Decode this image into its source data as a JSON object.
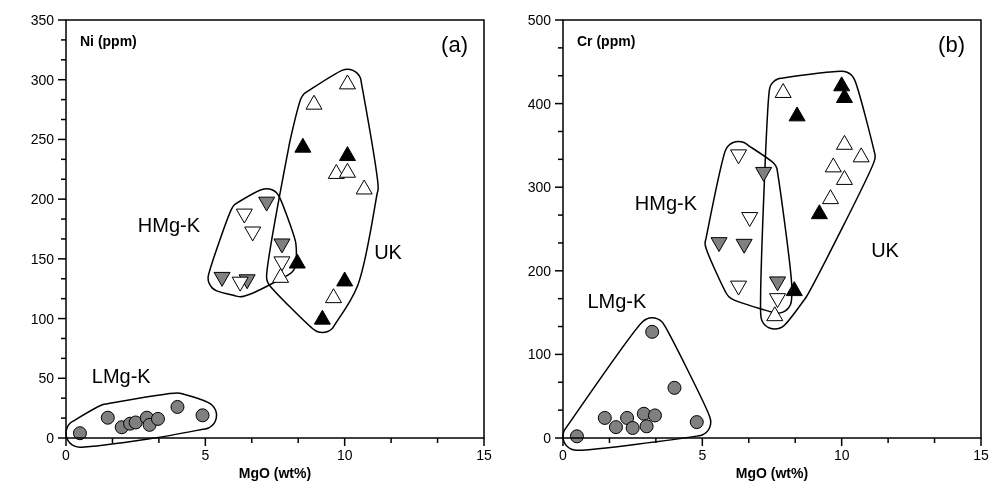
{
  "chart_data": [
    {
      "type": "scatter",
      "ylabel": "Ni (ppm)",
      "xlabel": "MgO  (wt%)",
      "xlim": [
        0,
        15
      ],
      "ylim": [
        0,
        350
      ],
      "xticks": [
        0,
        {
          "value": 1.667,
          "label": null
        },
        {
          "value": 3.333,
          "label": null
        },
        5,
        {
          "value": 6.667,
          "label": null
        },
        {
          "value": 8.333,
          "label": null
        },
        10,
        {
          "value": 11.667,
          "label": null
        },
        {
          "value": 13.333,
          "label": null
        },
        15
      ],
      "yticks": [
        0,
        {
          "value": 16.67,
          "label": null
        },
        {
          "value": 33.33,
          "label": null
        },
        50,
        {
          "value": 66.67,
          "label": null
        },
        {
          "value": 83.33,
          "label": null
        },
        100,
        {
          "value": 116.67,
          "label": null
        },
        {
          "value": 133.33,
          "label": null
        },
        150,
        {
          "value": 166.67,
          "label": null
        },
        {
          "value": 183.33,
          "label": null
        },
        200,
        {
          "value": 216.67,
          "label": null
        },
        {
          "value": 233.33,
          "label": null
        },
        250,
        {
          "value": 266.67,
          "label": null
        },
        {
          "value": 283.33,
          "label": null
        },
        300,
        {
          "value": 316.67,
          "label": null
        },
        {
          "value": 333.33,
          "label": null
        },
        350
      ],
      "annotations": [
        "(a)",
        "LMg-K",
        "HMg-K",
        "UK"
      ],
      "series": [
        {
          "marker": "circle",
          "color": "#808080",
          "x": [
            0.5,
            1.5,
            2.0,
            2.3,
            2.5,
            2.9,
            3.0,
            3.3,
            4.0,
            4.9
          ],
          "values": [
            4,
            17,
            9,
            12,
            13,
            17,
            11,
            16,
            26,
            19
          ]
        },
        {
          "marker": "triangle-down",
          "color": "#808080",
          "x": [
            7.2,
            7.75,
            6.5,
            5.6
          ],
          "values": [
            197,
            162,
            132,
            134
          ]
        },
        {
          "marker": "triangle-down",
          "color": "#ffffff",
          "x": [
            6.4,
            6.7,
            7.75,
            6.25
          ],
          "values": [
            187,
            172,
            147,
            130
          ]
        },
        {
          "marker": "triangle",
          "color": "#000000",
          "x": [
            8.5,
            10.1,
            8.3,
            10.0,
            9.2
          ],
          "values": [
            244,
            237,
            147,
            132,
            100
          ]
        },
        {
          "marker": "triangle",
          "color": "#ffffff",
          "x": [
            10.1,
            8.9,
            9.7,
            10.1,
            10.7,
            7.7,
            9.6
          ],
          "values": [
            297,
            280,
            222,
            223,
            209,
            135,
            118
          ]
        }
      ]
    },
    {
      "type": "scatter",
      "ylabel": "Cr (ppm)",
      "xlabel": "MgO  (wt%)",
      "xlim": [
        0,
        15
      ],
      "ylim": [
        0,
        500
      ],
      "xticks": [
        0,
        {
          "value": 1.667,
          "label": null
        },
        {
          "value": 3.333,
          "label": null
        },
        5,
        {
          "value": 6.667,
          "label": null
        },
        {
          "value": 8.333,
          "label": null
        },
        10,
        {
          "value": 11.667,
          "label": null
        },
        {
          "value": 13.333,
          "label": null
        },
        15
      ],
      "yticks": [
        0,
        {
          "value": 33.33,
          "label": null
        },
        {
          "value": 66.67,
          "label": null
        },
        100,
        {
          "value": 133.33,
          "label": null
        },
        {
          "value": 166.67,
          "label": null
        },
        200,
        {
          "value": 233.33,
          "label": null
        },
        {
          "value": 266.67,
          "label": null
        },
        300,
        {
          "value": 333.33,
          "label": null
        },
        {
          "value": 366.67,
          "label": null
        },
        400,
        {
          "value": 433.33,
          "label": null
        },
        {
          "value": 466.67,
          "label": null
        },
        500
      ],
      "annotations": [
        "(b)",
        "LMg-K",
        "HMg-K",
        "UK"
      ],
      "series": [
        {
          "marker": "circle",
          "color": "#808080",
          "x": [
            0.5,
            1.5,
            1.9,
            2.3,
            2.5,
            2.9,
            3.0,
            3.3,
            3.2,
            4.0,
            4.8
          ],
          "values": [
            2,
            24,
            13,
            24,
            12,
            29,
            14,
            27,
            127,
            60,
            19
          ]
        },
        {
          "marker": "triangle-down",
          "color": "#808080",
          "x": [
            7.2,
            5.6,
            6.5,
            7.7
          ],
          "values": [
            317,
            233,
            231,
            186
          ]
        },
        {
          "marker": "triangle-down",
          "color": "#ffffff",
          "x": [
            6.3,
            6.7,
            6.3,
            7.7
          ],
          "values": [
            338,
            263,
            181,
            166
          ]
        },
        {
          "marker": "triangle",
          "color": "#000000",
          "x": [
            10.0,
            10.1,
            8.4,
            9.2,
            8.3
          ],
          "values": [
            422,
            408,
            386,
            269,
            177
          ]
        },
        {
          "marker": "triangle",
          "color": "#ffffff",
          "x": [
            7.9,
            10.1,
            9.7,
            10.7,
            10.1,
            9.6,
            7.6
          ],
          "values": [
            414,
            352,
            325,
            337,
            310,
            287,
            147
          ]
        }
      ]
    }
  ]
}
